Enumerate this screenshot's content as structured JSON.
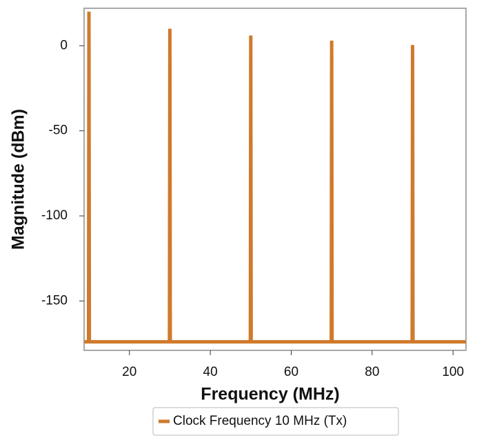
{
  "chart_data": {
    "type": "line",
    "x_label": "Frequency (MHz)",
    "y_label": "Magnitude (dBm)",
    "x": [
      8.8,
      9.9,
      10,
      10.1,
      29.9,
      30,
      30.1,
      49.9,
      50,
      50.1,
      69.9,
      70,
      70.1,
      89.9,
      90,
      90.1,
      103.2
    ],
    "series": [
      {
        "name": "Clock Frequency 10 MHz (Tx)",
        "color": "#cf7a2c",
        "values": [
          -174,
          -174,
          20,
          -174,
          -174,
          10,
          -174,
          -174,
          6,
          -174,
          -174,
          3,
          -174,
          -174,
          0.4,
          -174,
          -174
        ]
      }
    ],
    "xlim": [
      8.8,
      103.2
    ],
    "xticks": [
      20,
      40,
      60,
      80,
      100
    ],
    "ylim": [
      -179,
      22
    ],
    "yticks": [
      0,
      -50,
      -100,
      -150
    ],
    "grid": false
  }
}
